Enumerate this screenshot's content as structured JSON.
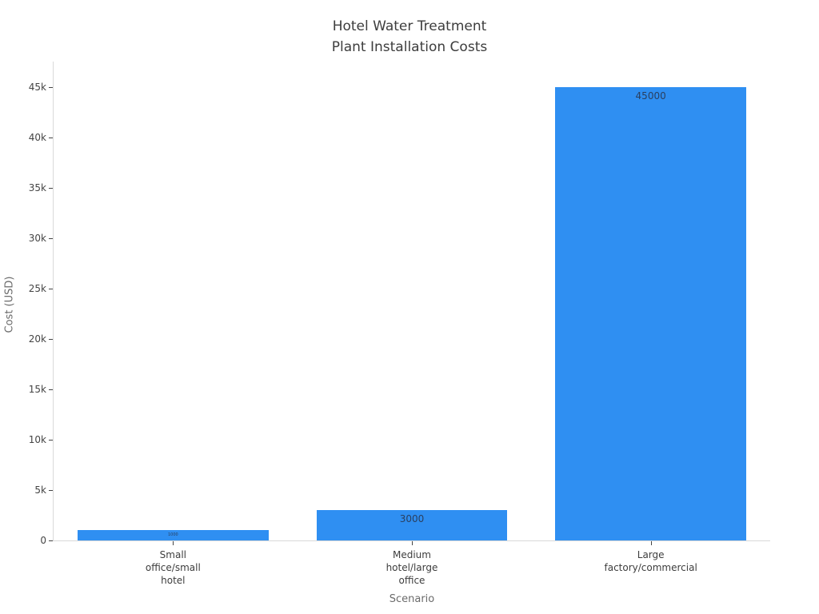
{
  "chart_data": {
    "type": "bar",
    "title": "Hotel Water Treatment Plant Installation Costs",
    "title_lines": [
      "Hotel Water Treatment",
      "Plant Installation Costs"
    ],
    "xlabel": "Scenario",
    "ylabel": "Cost (USD)",
    "categories": [
      "Small office/small hotel",
      "Medium hotel/large office",
      "Large factory/commercial"
    ],
    "category_lines": [
      [
        "Small",
        "office/small",
        "hotel"
      ],
      [
        "Medium",
        "hotel/large",
        "office"
      ],
      [
        "Large",
        "factory/commercial"
      ]
    ],
    "values": [
      1000,
      3000,
      45000
    ],
    "bar_labels": [
      "1000",
      "3000",
      "45000"
    ],
    "ylim": [
      0,
      47500
    ],
    "yticks": [
      {
        "value": 0,
        "label": "0"
      },
      {
        "value": 5000,
        "label": "5k"
      },
      {
        "value": 10000,
        "label": "10k"
      },
      {
        "value": 15000,
        "label": "15k"
      },
      {
        "value": 20000,
        "label": "20k"
      },
      {
        "value": 25000,
        "label": "25k"
      },
      {
        "value": 30000,
        "label": "30k"
      },
      {
        "value": 35000,
        "label": "35k"
      },
      {
        "value": 40000,
        "label": "40k"
      },
      {
        "value": 45000,
        "label": "45k"
      }
    ],
    "bar_color": "#2f8ff2",
    "bar_label_color": "#2a3f5f",
    "grid": false,
    "legend": false
  }
}
